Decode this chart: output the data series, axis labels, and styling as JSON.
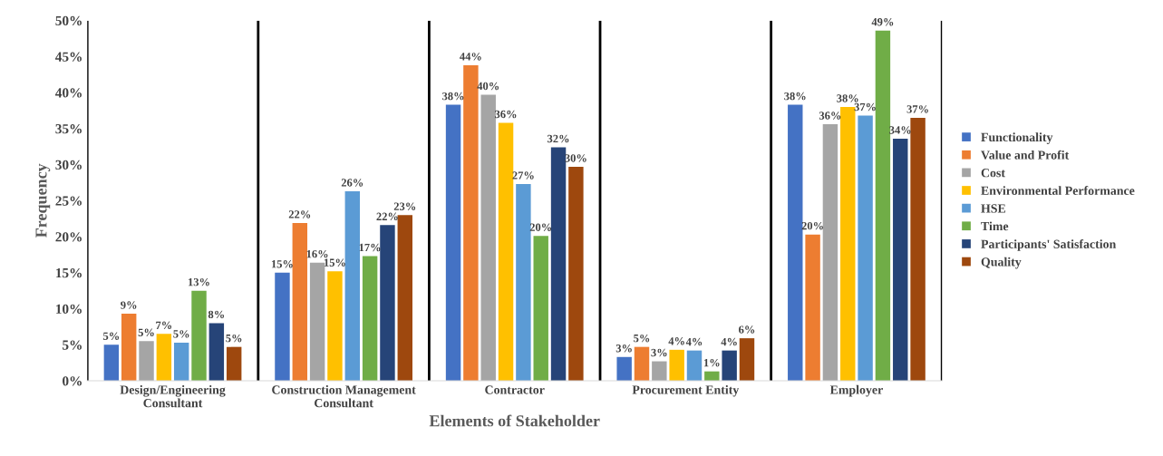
{
  "chart_data": {
    "type": "bar",
    "xlabel": "Elements of Stakeholder",
    "ylabel": "Frequency",
    "categories": [
      "Design/Engineering\nConsultant",
      "Construction Management\nConsultant",
      "Contractor",
      "Procurement Entity",
      "Employer"
    ],
    "series": [
      {
        "name": "Functionality",
        "color": "#4472c4",
        "values": [
          5.0,
          15.0,
          38.3,
          3.3,
          38.3
        ],
        "value_labels": [
          "5%",
          "15%",
          "38%",
          "3%",
          "38%"
        ]
      },
      {
        "name": "Value and Profit",
        "color": "#ed7d31",
        "values": [
          9.3,
          21.9,
          43.8,
          4.7,
          20.3
        ],
        "value_labels": [
          "9%",
          "22%",
          "44%",
          "5%",
          "20%"
        ]
      },
      {
        "name": "Cost",
        "color": "#a5a5a5",
        "values": [
          5.5,
          16.4,
          39.7,
          2.7,
          35.6
        ],
        "value_labels": [
          "5%",
          "16%",
          "40%",
          "3%",
          "36%"
        ]
      },
      {
        "name": "Environmental Performance",
        "color": "#ffc000",
        "values": [
          6.5,
          15.2,
          35.8,
          4.3,
          38.0
        ],
        "value_labels": [
          "7%",
          "15%",
          "36%",
          "4%",
          "38%"
        ]
      },
      {
        "name": "HSE",
        "color": "#5b9bd5",
        "values": [
          5.3,
          26.3,
          27.3,
          4.2,
          36.8
        ],
        "value_labels": [
          "5%",
          "26%",
          "27%",
          "4%",
          "37%"
        ]
      },
      {
        "name": "Time",
        "color": "#70ad47",
        "values": [
          12.5,
          17.3,
          20.1,
          1.3,
          48.6
        ],
        "value_labels": [
          "13%",
          "17%",
          "20%",
          "1%",
          "49%"
        ]
      },
      {
        "name": "Participants' Satisfaction",
        "color": "#264478",
        "values": [
          8.0,
          21.6,
          32.4,
          4.2,
          33.6
        ],
        "value_labels": [
          "8%",
          "22%",
          "32%",
          "4%",
          "34%"
        ]
      },
      {
        "name": "Quality",
        "color": "#9e480e",
        "values": [
          4.7,
          23.0,
          29.7,
          5.9,
          36.5
        ],
        "value_labels": [
          "5%",
          "23%",
          "30%",
          "6%",
          "37%"
        ]
      }
    ],
    "ylim": [
      0,
      50
    ],
    "yticks": [
      {
        "value": 0,
        "label": "0%"
      },
      {
        "value": 5,
        "label": "5%"
      },
      {
        "value": 10,
        "label": "10%"
      },
      {
        "value": 15,
        "label": "15%"
      },
      {
        "value": 20,
        "label": "20%"
      },
      {
        "value": 25,
        "label": "25%"
      },
      {
        "value": 30,
        "label": "30%"
      },
      {
        "value": 35,
        "label": "35%"
      },
      {
        "value": 40,
        "label": "40%"
      },
      {
        "value": 45,
        "label": "45%"
      },
      {
        "value": 50,
        "label": "50%"
      }
    ],
    "grid": "x",
    "legend": "right"
  }
}
